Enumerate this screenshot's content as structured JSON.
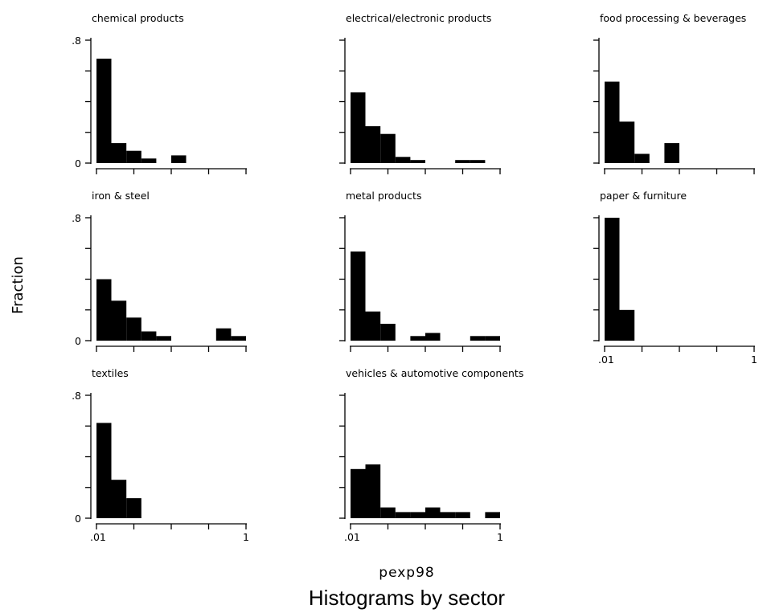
{
  "chart_data": {
    "type": "bar",
    "title": "Histograms by sector",
    "xlabel": "pexp98",
    "ylabel": "Fraction",
    "x_tick_labels": [
      ".01",
      "1"
    ],
    "y_tick_labels": [
      "0",
      ".8"
    ],
    "ylim": [
      0,
      0.8
    ],
    "x_scale": "log",
    "xlim": [
      0.01,
      1
    ],
    "panels": [
      {
        "name": "chemical products",
        "bars": [
          {
            "x0": 0.01,
            "x1": 0.0158,
            "y": 0.68
          },
          {
            "x0": 0.0158,
            "x1": 0.0251,
            "y": 0.13
          },
          {
            "x0": 0.0251,
            "x1": 0.0398,
            "y": 0.08
          },
          {
            "x0": 0.0398,
            "x1": 0.0631,
            "y": 0.03
          },
          {
            "x0": 0.1,
            "x1": 0.158,
            "y": 0.05
          }
        ]
      },
      {
        "name": "electrical/electronic products",
        "bars": [
          {
            "x0": 0.01,
            "x1": 0.0158,
            "y": 0.46
          },
          {
            "x0": 0.0158,
            "x1": 0.0251,
            "y": 0.24
          },
          {
            "x0": 0.0251,
            "x1": 0.0398,
            "y": 0.19
          },
          {
            "x0": 0.0398,
            "x1": 0.0631,
            "y": 0.04
          },
          {
            "x0": 0.0631,
            "x1": 0.1,
            "y": 0.02
          },
          {
            "x0": 0.251,
            "x1": 0.398,
            "y": 0.02
          },
          {
            "x0": 0.398,
            "x1": 0.631,
            "y": 0.02
          }
        ]
      },
      {
        "name": "food processing & beverages",
        "bars": [
          {
            "x0": 0.01,
            "x1": 0.0158,
            "y": 0.53
          },
          {
            "x0": 0.0158,
            "x1": 0.0251,
            "y": 0.27
          },
          {
            "x0": 0.0251,
            "x1": 0.0398,
            "y": 0.06
          },
          {
            "x0": 0.0631,
            "x1": 0.1,
            "y": 0.13
          }
        ]
      },
      {
        "name": "iron & steel",
        "bars": [
          {
            "x0": 0.01,
            "x1": 0.0158,
            "y": 0.4
          },
          {
            "x0": 0.0158,
            "x1": 0.0251,
            "y": 0.26
          },
          {
            "x0": 0.0251,
            "x1": 0.0398,
            "y": 0.15
          },
          {
            "x0": 0.0398,
            "x1": 0.0631,
            "y": 0.06
          },
          {
            "x0": 0.0631,
            "x1": 0.1,
            "y": 0.03
          },
          {
            "x0": 0.398,
            "x1": 0.631,
            "y": 0.08
          },
          {
            "x0": 0.631,
            "x1": 1.0,
            "y": 0.03
          }
        ]
      },
      {
        "name": "metal products",
        "bars": [
          {
            "x0": 0.01,
            "x1": 0.0158,
            "y": 0.58
          },
          {
            "x0": 0.0158,
            "x1": 0.0251,
            "y": 0.19
          },
          {
            "x0": 0.0251,
            "x1": 0.0398,
            "y": 0.11
          },
          {
            "x0": 0.0631,
            "x1": 0.1,
            "y": 0.03
          },
          {
            "x0": 0.1,
            "x1": 0.158,
            "y": 0.05
          },
          {
            "x0": 0.398,
            "x1": 0.631,
            "y": 0.03
          },
          {
            "x0": 0.631,
            "x1": 1.0,
            "y": 0.03
          }
        ]
      },
      {
        "name": "paper & furniture",
        "bars": [
          {
            "x0": 0.01,
            "x1": 0.0158,
            "y": 0.8
          },
          {
            "x0": 0.0158,
            "x1": 0.0251,
            "y": 0.2
          }
        ]
      },
      {
        "name": "textiles",
        "bars": [
          {
            "x0": 0.01,
            "x1": 0.0158,
            "y": 0.62
          },
          {
            "x0": 0.0158,
            "x1": 0.0251,
            "y": 0.25
          },
          {
            "x0": 0.0251,
            "x1": 0.0398,
            "y": 0.13
          }
        ]
      },
      {
        "name": "vehicles & automotive components",
        "bars": [
          {
            "x0": 0.01,
            "x1": 0.0158,
            "y": 0.32
          },
          {
            "x0": 0.0158,
            "x1": 0.0251,
            "y": 0.35
          },
          {
            "x0": 0.0251,
            "x1": 0.0398,
            "y": 0.07
          },
          {
            "x0": 0.0398,
            "x1": 0.0631,
            "y": 0.04
          },
          {
            "x0": 0.0631,
            "x1": 0.1,
            "y": 0.04
          },
          {
            "x0": 0.1,
            "x1": 0.158,
            "y": 0.07
          },
          {
            "x0": 0.158,
            "x1": 0.251,
            "y": 0.04
          },
          {
            "x0": 0.251,
            "x1": 0.398,
            "y": 0.04
          },
          {
            "x0": 0.631,
            "x1": 1.0,
            "y": 0.04
          }
        ]
      }
    ]
  }
}
